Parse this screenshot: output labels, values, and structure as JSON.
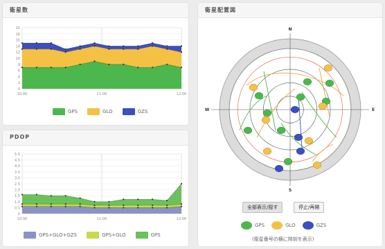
{
  "panels": {
    "sat_count": {
      "title": "衛星数"
    },
    "pdop": {
      "title": "PDOP"
    },
    "sky": {
      "title": "衛星配置図"
    }
  },
  "sat_chart": {
    "chart_data": {
      "type": "area",
      "x_ticks": [
        "10:00",
        "11:00",
        "12:00"
      ],
      "y_ticks": [
        "0",
        "2",
        "4",
        "6",
        "8",
        "10",
        "12",
        "14",
        "16",
        "18",
        "20"
      ],
      "ylim": [
        0,
        20
      ],
      "stacked": true,
      "series": [
        {
          "name": "GPS",
          "color": "#4cb74c",
          "values": [
            7,
            7,
            7,
            7,
            8,
            9,
            8,
            8,
            7,
            7,
            8,
            7
          ]
        },
        {
          "name": "GLO",
          "color": "#f4c145",
          "values": [
            6,
            6,
            6,
            5,
            5,
            5,
            5,
            5,
            6,
            7,
            5,
            5
          ]
        },
        {
          "name": "GZS",
          "color": "#3b4fc0",
          "values": [
            2,
            2,
            2,
            1,
            1,
            1,
            1,
            1,
            1,
            1,
            1,
            2
          ]
        }
      ]
    }
  },
  "pdop_chart": {
    "chart_data": {
      "type": "area",
      "x_ticks": [
        "10:00",
        "11:00",
        "12:00"
      ],
      "y_ticks": [
        "0",
        "0.5",
        "1.0",
        "1.5",
        "2.0",
        "2.5",
        "3.0",
        "3.5",
        "4.0",
        "4.5",
        "5.0"
      ],
      "ylim": [
        0,
        5
      ],
      "stacked": false,
      "series": [
        {
          "name": "GPS",
          "color": "#6bc25a",
          "values": [
            1.6,
            1.6,
            1.5,
            1.5,
            1.3,
            1.0,
            1.0,
            1.2,
            1.2,
            1.2,
            1.1,
            2.5
          ]
        },
        {
          "name": "GPS+GLO",
          "color": "#c8d94a",
          "values": [
            0.8,
            0.8,
            0.8,
            0.8,
            0.8,
            0.7,
            0.7,
            0.7,
            0.7,
            0.7,
            0.7,
            0.8
          ]
        },
        {
          "name": "GPS+GLO+GZS",
          "color": "#8a93c6",
          "values": [
            0.6,
            0.6,
            0.6,
            0.6,
            0.6,
            0.5,
            0.5,
            0.5,
            0.5,
            0.5,
            0.5,
            0.6
          ]
        }
      ]
    }
  },
  "sky": {
    "directions": {
      "n": "N",
      "s": "S",
      "e": "E",
      "w": "W"
    },
    "buttons": {
      "left": "全部表示/隠す",
      "right": "停止/再開"
    },
    "legend": [
      {
        "name": "GPS",
        "color": "#4cb74c"
      },
      {
        "name": "GLO",
        "color": "#f4c145"
      },
      {
        "name": "GZS",
        "color": "#3b4fc0"
      }
    ],
    "note": "(衛星番号の横に時刻を表示)"
  }
}
